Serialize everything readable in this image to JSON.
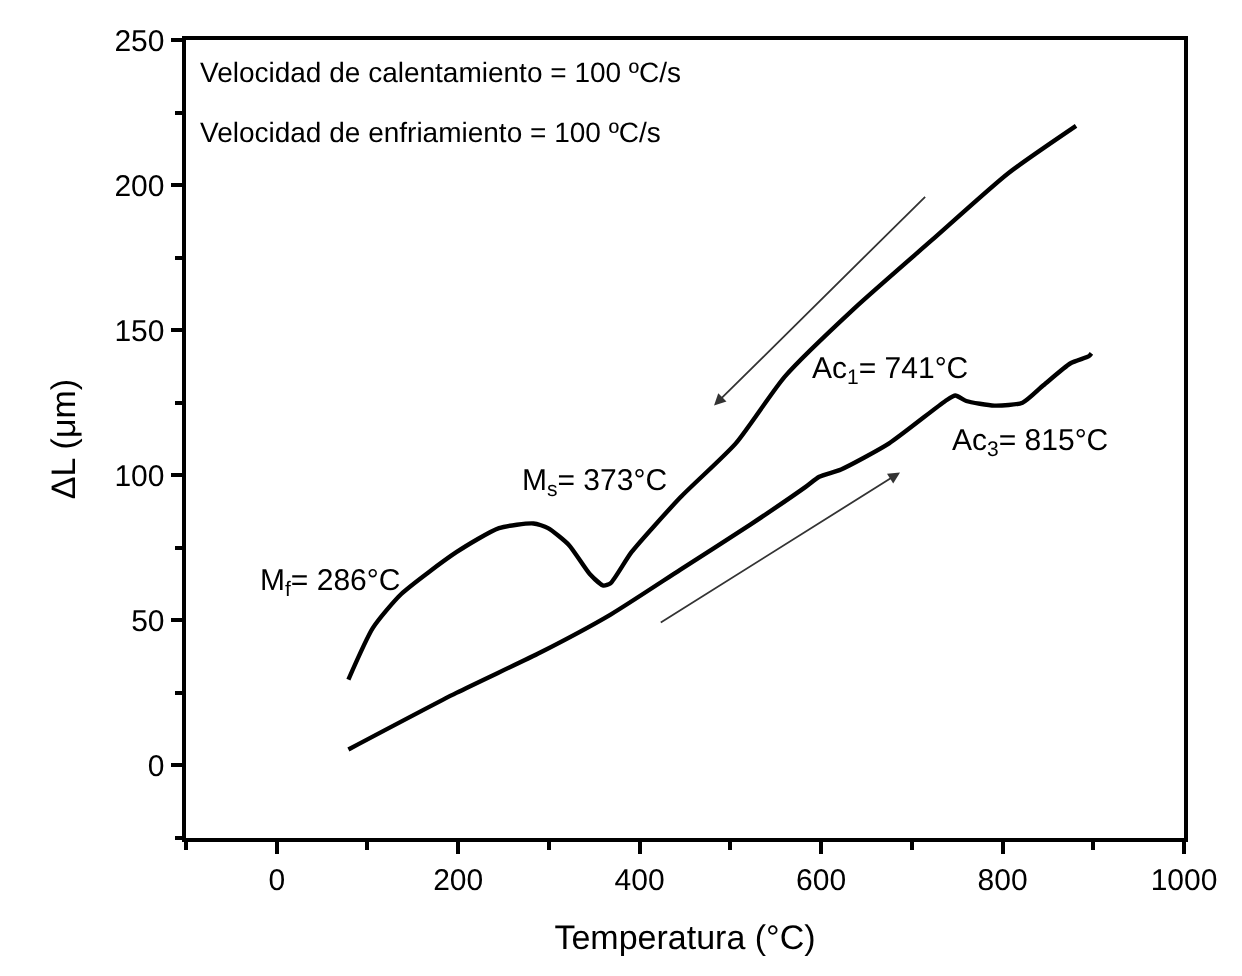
{
  "chart_data": {
    "type": "line",
    "xlabel": "Temperatura (°C)",
    "ylabel": "ΔL (μm)",
    "xlim": [
      -100,
      1000
    ],
    "xticks": [
      0,
      200,
      400,
      600,
      800,
      1000
    ],
    "ylim": [
      -25,
      250
    ],
    "yticks": [
      0,
      50,
      100,
      150,
      200,
      250
    ],
    "marker": "none",
    "line_style": "solid",
    "series": [
      {
        "color": "#000000",
        "x": [
          79,
          198,
          291,
          368,
          445,
          522,
          583,
          598,
          622,
          675,
          737,
          748,
          760,
          791,
          822,
          845,
          875,
          895,
          898
        ],
        "values": [
          5.5,
          25,
          39,
          52,
          67.5,
          83,
          96,
          99.5,
          102,
          111,
          125.6,
          127.5,
          125.6,
          124,
          125,
          131,
          138.6,
          141,
          142
        ]
      },
      {
        "color": "#000000",
        "x": [
          881,
          806,
          722,
          637,
          560,
          506,
          445,
          391,
          368,
          360,
          345,
          322,
          299,
          283,
          245,
          198,
          137,
          106,
          79
        ],
        "values": [
          220.4,
          204,
          181,
          157.6,
          134,
          111,
          92.4,
          73.5,
          62.8,
          62,
          66,
          76,
          81.8,
          83.4,
          81.8,
          73.5,
          59,
          47.4,
          29.6
        ]
      }
    ],
    "annotations": [
      "Velocidad de calentamiento = 100 ºC/s",
      "Velocidad de enfriamiento = 100 ºC/s",
      "M$_{f}$= 286°C",
      "M$_{s}$= 373°C",
      "Ac$_{1}$= 741°C",
      "Ac$_{3}$= 815°C"
    ]
  }
}
